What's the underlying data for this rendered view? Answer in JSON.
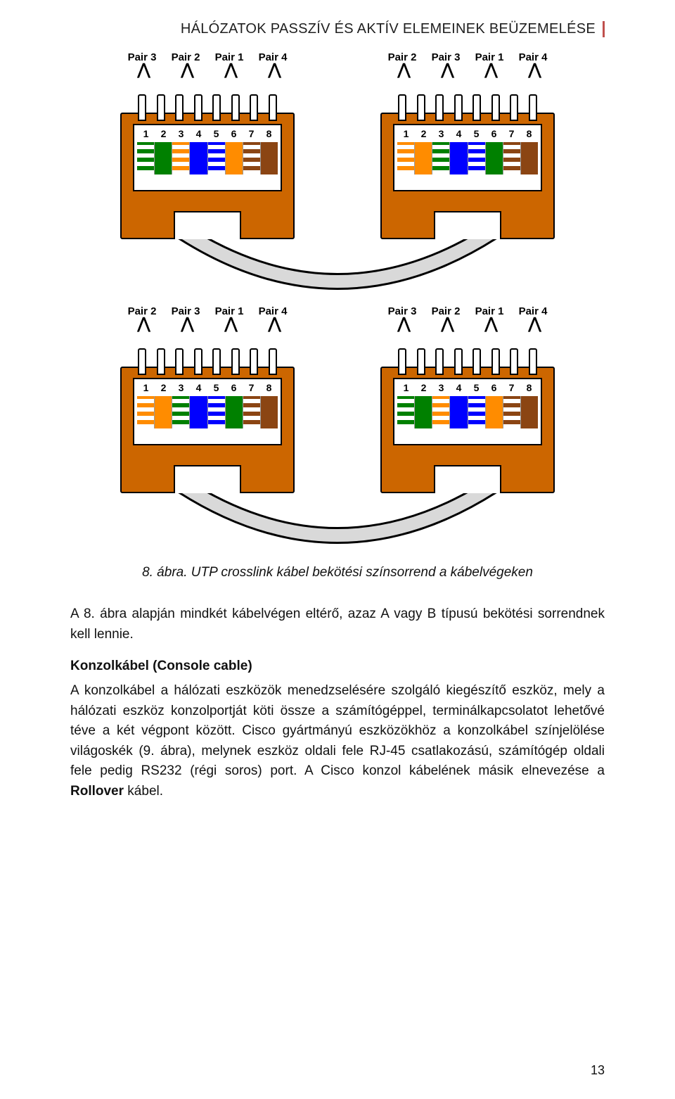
{
  "header": {
    "title": "HÁLÓZATOK PASSZÍV ÉS AKTÍV ELEMEINEK BEÜZEMELÉSE",
    "accent_color": "#c0504d"
  },
  "diagram": {
    "rows": [
      {
        "left": {
          "pairs": [
            "Pair 3",
            "Pair 2",
            "Pair 1",
            "Pair 4"
          ],
          "pair_positions": [
            "outer-left",
            "inner-left",
            "inner-right",
            "outer-right"
          ],
          "wire_colors": [
            "#ffffff/#008000",
            "#008000",
            "#ffffff/#ff8c00",
            "#0000ff",
            "#ffffff/#0000ff",
            "#ff8c00",
            "#ffffff/#8b4513",
            "#8b4513"
          ],
          "pin_numbers": [
            "1",
            "2",
            "3",
            "4",
            "5",
            "6",
            "7",
            "8"
          ]
        },
        "right": {
          "pairs": [
            "Pair 2",
            "Pair 3",
            "Pair 1",
            "Pair 4"
          ],
          "wire_colors": [
            "#ffffff/#ff8c00",
            "#ff8c00",
            "#ffffff/#008000",
            "#0000ff",
            "#ffffff/#0000ff",
            "#008000",
            "#ffffff/#8b4513",
            "#8b4513"
          ],
          "pin_numbers": [
            "1",
            "2",
            "3",
            "4",
            "5",
            "6",
            "7",
            "8"
          ]
        }
      },
      {
        "left": {
          "pairs": [
            "Pair 2",
            "Pair 3",
            "Pair 1",
            "Pair 4"
          ],
          "wire_colors": [
            "#ffffff/#ff8c00",
            "#ff8c00",
            "#ffffff/#008000",
            "#0000ff",
            "#ffffff/#0000ff",
            "#008000",
            "#ffffff/#8b4513",
            "#8b4513"
          ],
          "pin_numbers": [
            "1",
            "2",
            "3",
            "4",
            "5",
            "6",
            "7",
            "8"
          ]
        },
        "right": {
          "pairs": [
            "Pair 3",
            "Pair 2",
            "Pair 1",
            "Pair 4"
          ],
          "wire_colors": [
            "#ffffff/#008000",
            "#008000",
            "#ffffff/#ff8c00",
            "#0000ff",
            "#ffffff/#0000ff",
            "#ff8c00",
            "#ffffff/#8b4513",
            "#8b4513"
          ],
          "pin_numbers": [
            "1",
            "2",
            "3",
            "4",
            "5",
            "6",
            "7",
            "8"
          ]
        }
      }
    ],
    "connector_body_color": "#cc6600",
    "cable_color": "#d9d9d9",
    "cable_stroke": "#000000"
  },
  "caption": "8. ábra. UTP crosslink kábel bekötési színsorrend a kábelvégeken",
  "para1": "A 8. ábra alapján mindkét kábelvégen eltérő, azaz A vagy B típusú bekötési sorrendnek kell lennie.",
  "subhead": "Konzolkábel (Console cable)",
  "para2_a": "A konzolkábel a hálózati eszközök menedzselésére szolgáló kiegészítő eszköz, mely a hálózati eszköz konzolportját köti össze a számítógéppel, terminálkapcsolatot lehetővé téve a két végpont között. Cisco gyártmányú eszközökhöz a konzolkábel színjelölése világoskék (9. ábra), melynek eszköz oldali fele RJ-45 csatlakozású, számítógép oldali fele pedig RS232 (régi soros) port. A Cisco konzol kábelének másik elnevezése a ",
  "para2_bold": "Rollover",
  "para2_b": " kábel.",
  "page_number": "13"
}
